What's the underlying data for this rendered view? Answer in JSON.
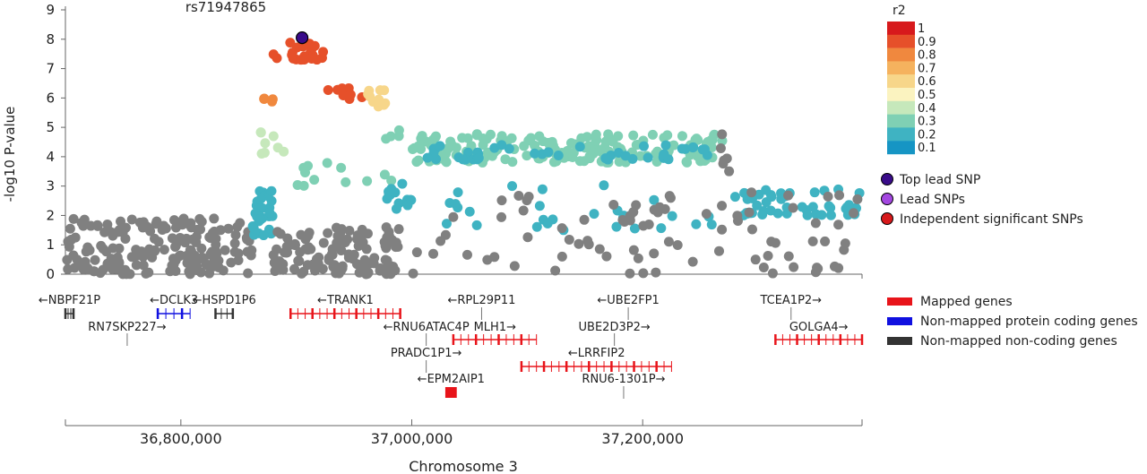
{
  "chart_data": {
    "type": "scatter",
    "title": "rs71947865",
    "xlabel": "Chromosome 3",
    "ylabel": "-log10 P-value",
    "ylim": [
      0,
      9
    ],
    "yticks": [
      "0",
      "1",
      "2",
      "3",
      "4",
      "5",
      "6",
      "7",
      "8",
      "9"
    ],
    "xlim": [
      36700000,
      37390000
    ],
    "xticks": [
      {
        "value": 36800000,
        "label": "36,800,000"
      },
      {
        "value": 37000000,
        "label": "37,000,000"
      },
      {
        "value": 37200000,
        "label": "37,200,000"
      }
    ],
    "r2_legend": {
      "title": "r2",
      "levels": [
        {
          "label": "1",
          "color": "#d7191c"
        },
        {
          "label": "0.9",
          "color": "#e6502a"
        },
        {
          "label": "0.8",
          "color": "#f0883e"
        },
        {
          "label": "0.7",
          "color": "#f5b25e"
        },
        {
          "label": "0.6",
          "color": "#f7d68a"
        },
        {
          "label": "0.5",
          "color": "#fbf3c0"
        },
        {
          "label": "0.4",
          "color": "#c6e8bb"
        },
        {
          "label": "0.3",
          "color": "#7fd0b4"
        },
        {
          "label": "0.2",
          "color": "#3fb3c2"
        },
        {
          "label": "0.1",
          "color": "#1695c4"
        }
      ]
    },
    "point_legend": [
      {
        "label": "Top lead SNP",
        "color": "#3a0c8a"
      },
      {
        "label": "Lead SNPs",
        "color": "#a347e0"
      },
      {
        "label": "Independent significant SNPs",
        "color": "#d7191c"
      }
    ],
    "gene_legend": [
      {
        "label": "Mapped genes",
        "color": "#e8141a"
      },
      {
        "label": "Non-mapped protein coding genes",
        "color": "#1010e0"
      },
      {
        "label": "Non-mapped non-coding genes",
        "color": "#333333"
      }
    ],
    "top_snp": {
      "x": 36905000,
      "y": 8.05
    },
    "segments": [
      {
        "x0": 36700000,
        "x1": 36862000,
        "ymin": 0,
        "ymax": 1.9,
        "n": 190,
        "color": "#808080"
      },
      {
        "x0": 36862000,
        "x1": 36880000,
        "ymin": 1.3,
        "ymax": 2.9,
        "n": 30,
        "color": "#3fb3c2"
      },
      {
        "x0": 36866000,
        "x1": 36890000,
        "ymin": 4.1,
        "ymax": 5.0,
        "n": 8,
        "color": "#c6e8bb"
      },
      {
        "x0": 36870000,
        "x1": 36880000,
        "ymin": 5.8,
        "ymax": 6.3,
        "n": 4,
        "color": "#f0883e"
      },
      {
        "x0": 36880000,
        "x1": 36925000,
        "ymin": 7.3,
        "ymax": 7.9,
        "n": 22,
        "color": "#e6502a"
      },
      {
        "x0": 36925000,
        "x1": 36960000,
        "ymin": 5.9,
        "ymax": 6.4,
        "n": 8,
        "color": "#e6502a"
      },
      {
        "x0": 36960000,
        "x1": 36980000,
        "ymin": 5.7,
        "ymax": 6.4,
        "n": 10,
        "color": "#f7d68a"
      },
      {
        "x0": 36880000,
        "x1": 36990000,
        "ymin": 0,
        "ymax": 1.6,
        "n": 120,
        "color": "#808080"
      },
      {
        "x0": 36900000,
        "x1": 36990000,
        "ymin": 3.0,
        "ymax": 3.9,
        "n": 12,
        "color": "#7fd0b4"
      },
      {
        "x0": 36975000,
        "x1": 37000000,
        "ymin": 2.2,
        "ymax": 3.2,
        "n": 14,
        "color": "#3fb3c2"
      },
      {
        "x0": 36975000,
        "x1": 36990000,
        "ymin": 4.6,
        "ymax": 5.0,
        "n": 4,
        "color": "#7fd0b4"
      },
      {
        "x0": 37000000,
        "x1": 37270000,
        "ymin": 3.8,
        "ymax": 4.8,
        "n": 190,
        "color": "#7fd0b4"
      },
      {
        "x0": 37010000,
        "x1": 37260000,
        "ymin": 3.9,
        "ymax": 4.4,
        "n": 45,
        "color": "#3fb3c2"
      },
      {
        "x0": 37010000,
        "x1": 37260000,
        "ymin": 1.5,
        "ymax": 3.1,
        "n": 28,
        "color": "#3fb3c2"
      },
      {
        "x0": 37000000,
        "x1": 37270000,
        "ymin": 0,
        "ymax": 3.0,
        "n": 55,
        "color": "#808080"
      },
      {
        "x0": 37265000,
        "x1": 37275000,
        "ymin": 3.5,
        "ymax": 4.9,
        "n": 6,
        "color": "#808080"
      },
      {
        "x0": 37275000,
        "x1": 37390000,
        "ymin": 2.0,
        "ymax": 2.9,
        "n": 50,
        "color": "#3fb3c2"
      },
      {
        "x0": 37275000,
        "x1": 37390000,
        "ymin": 0,
        "ymax": 2.8,
        "n": 30,
        "color": "#808080"
      }
    ],
    "genes": [
      {
        "label": "←NBPF21P",
        "start": 36700000,
        "end": 36707000,
        "row": 0,
        "color": "#333333",
        "dir": "left"
      },
      {
        "label": "←DCLK3",
        "start": 36780000,
        "end": 36808000,
        "row": 0,
        "color": "#1010e0",
        "dir": "left"
      },
      {
        "label": "←HSPD1P6",
        "start": 36830000,
        "end": 36845000,
        "row": 0,
        "color": "#333333",
        "dir": "left"
      },
      {
        "label": "RN7SKP227→",
        "start": 36753000,
        "end": 36754000,
        "row": 1,
        "color": "#333333",
        "dir": "right"
      },
      {
        "label": "←TRANK1",
        "start": 36895000,
        "end": 36990000,
        "row": 0,
        "color": "#e8141a",
        "dir": "left"
      },
      {
        "label": "←RNU6ATAC4P",
        "start": 37012000,
        "end": 37013000,
        "row": 1,
        "color": "#333333",
        "dir": "left"
      },
      {
        "label": "PRADC1P1→",
        "start": 37012000,
        "end": 37013000,
        "row": 2,
        "color": "#333333",
        "dir": "right"
      },
      {
        "label": "←EPM2AIP1",
        "start": 37030000,
        "end": 37038000,
        "row": 3,
        "color": "#e8141a",
        "dir": "left"
      },
      {
        "label": "←RPL29P11",
        "start": 37060000,
        "end": 37061000,
        "row": 0,
        "color": "#333333",
        "dir": "left"
      },
      {
        "label": "MLH1→",
        "start": 37036000,
        "end": 37108000,
        "row": 1,
        "color": "#e8141a",
        "dir": "right"
      },
      {
        "label": "←LRRFIP2",
        "start": 37095000,
        "end": 37225000,
        "row": 2,
        "color": "#e8141a",
        "dir": "left"
      },
      {
        "label": "←UBE2FP1",
        "start": 37187000,
        "end": 37188000,
        "row": 0,
        "color": "#333333",
        "dir": "left"
      },
      {
        "label": "UBE2D3P2→",
        "start": 37175000,
        "end": 37176000,
        "row": 1,
        "color": "#333333",
        "dir": "right"
      },
      {
        "label": "RNU6-1301P→",
        "start": 37183000,
        "end": 37184000,
        "row": 3,
        "color": "#333333",
        "dir": "right"
      },
      {
        "label": "TCEA1P2→",
        "start": 37328000,
        "end": 37329000,
        "row": 0,
        "color": "#333333",
        "dir": "right"
      },
      {
        "label": "GOLGA4→",
        "start": 37315000,
        "end": 37390000,
        "row": 1,
        "color": "#e8141a",
        "dir": "right"
      }
    ]
  }
}
